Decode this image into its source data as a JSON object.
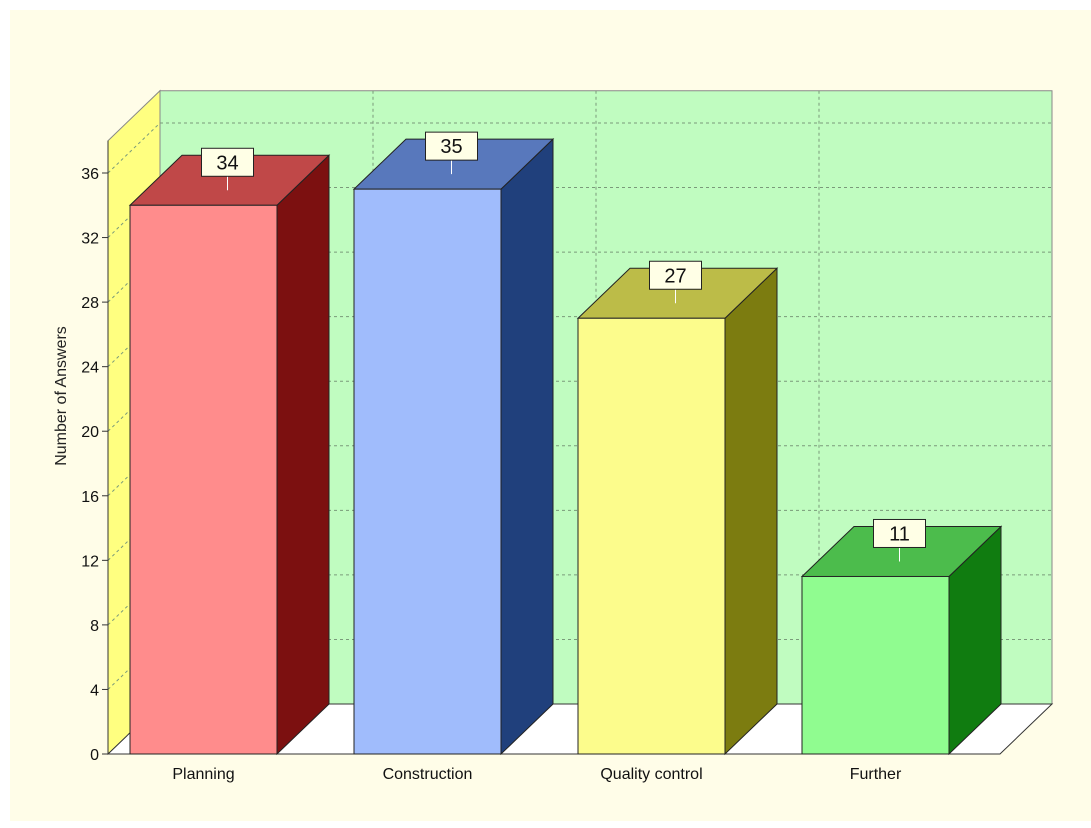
{
  "chart_data": {
    "type": "bar",
    "categories": [
      "Planning",
      "Construction",
      "Quality control",
      "Further"
    ],
    "values": [
      34,
      35,
      27,
      11
    ],
    "value_labels": [
      "34",
      "35",
      "27",
      "11"
    ],
    "ylabel": "Number of Answers",
    "ylim": [
      0,
      38
    ],
    "yticks": [
      "0",
      "4",
      "8",
      "12",
      "16",
      "20",
      "24",
      "28",
      "32",
      "36"
    ],
    "ytick_values": [
      0,
      4,
      8,
      12,
      16,
      20,
      24,
      28,
      32,
      36
    ],
    "grid": true,
    "style": "3d-bar",
    "colors": {
      "page_background": "#fffde8",
      "back_wall": "#c0fcc0",
      "side_wall": "#ffff80",
      "floor": "#ffffff",
      "grid": "#7a9a7a",
      "bars": [
        {
          "front": "#ff8c8c",
          "top": "#c04848",
          "side": "#7c1010"
        },
        {
          "front": "#a0bcfc",
          "top": "#5878bc",
          "side": "#20407c"
        },
        {
          "front": "#fcfc8c",
          "top": "#bcbc48",
          "side": "#7c7c10"
        },
        {
          "front": "#90fc90",
          "top": "#4cbc4c",
          "side": "#107c10"
        }
      ]
    }
  }
}
